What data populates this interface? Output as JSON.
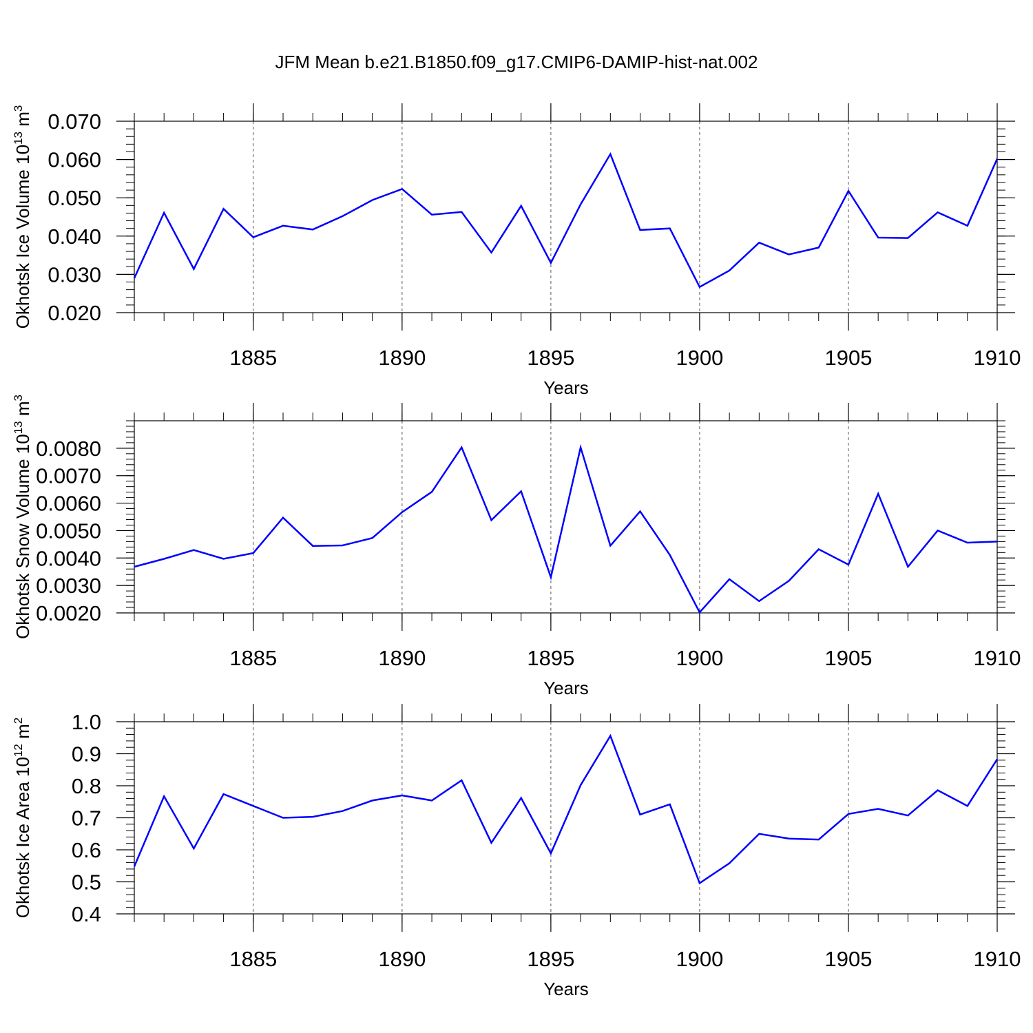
{
  "title": "JFM Mean b.e21.B1850.f09_g17.CMIP6-DAMIP-hist-nat.002",
  "colors": {
    "line": "#0000ff",
    "axis": "#000000",
    "grid": "#555555"
  },
  "chart_data": [
    {
      "type": "line",
      "ylabel_main": "Okhotsk Ice Volume 10",
      "ylabel_sup": "13",
      "ylabel_unit": " m",
      "ylabel_unit_sup": "3",
      "xlabel": "Years",
      "xlim": [
        1881,
        1910
      ],
      "ylim": [
        0.02,
        0.07
      ],
      "xticks": [
        "1885",
        "1890",
        "1895",
        "1900",
        "1905",
        "1910"
      ],
      "yticks": [
        "0.020",
        "0.030",
        "0.040",
        "0.050",
        "0.060",
        "0.070"
      ],
      "x": [
        1881,
        1882,
        1883,
        1884,
        1885,
        1886,
        1887,
        1888,
        1889,
        1890,
        1891,
        1892,
        1893,
        1894,
        1895,
        1896,
        1897,
        1898,
        1899,
        1900,
        1901,
        1902,
        1903,
        1904,
        1905,
        1906,
        1907,
        1908,
        1909,
        1910
      ],
      "values": [
        0.029,
        0.0461,
        0.0314,
        0.0471,
        0.0397,
        0.0427,
        0.0417,
        0.0452,
        0.0494,
        0.0523,
        0.0456,
        0.0463,
        0.0357,
        0.0479,
        0.033,
        0.0483,
        0.0614,
        0.0416,
        0.042,
        0.0267,
        0.031,
        0.0383,
        0.0352,
        0.037,
        0.0518,
        0.0396,
        0.0395,
        0.0462,
        0.0427,
        0.0602
      ]
    },
    {
      "type": "line",
      "ylabel_main": "Okhotsk Snow Volume 10",
      "ylabel_sup": "13",
      "ylabel_unit": " m",
      "ylabel_unit_sup": "3",
      "xlabel": "Years",
      "xlim": [
        1881,
        1910
      ],
      "ylim": [
        0.002,
        0.009
      ],
      "xticks": [
        "1885",
        "1890",
        "1895",
        "1900",
        "1905",
        "1910"
      ],
      "yticks": [
        "0.0020",
        "0.0030",
        "0.0040",
        "0.0050",
        "0.0060",
        "0.0070",
        "0.0080"
      ],
      "x": [
        1881,
        1882,
        1883,
        1884,
        1885,
        1886,
        1887,
        1888,
        1889,
        1890,
        1891,
        1892,
        1893,
        1894,
        1895,
        1896,
        1897,
        1898,
        1899,
        1900,
        1901,
        1902,
        1903,
        1904,
        1905,
        1906,
        1907,
        1908,
        1909,
        1910
      ],
      "values": [
        0.00368,
        0.00397,
        0.00429,
        0.00397,
        0.00418,
        0.00547,
        0.00444,
        0.00446,
        0.00473,
        0.00567,
        0.00641,
        0.00803,
        0.00538,
        0.00643,
        0.0033,
        0.00803,
        0.00445,
        0.0057,
        0.00411,
        0.00202,
        0.00323,
        0.00243,
        0.00317,
        0.00432,
        0.00376,
        0.00634,
        0.00368,
        0.005,
        0.00456,
        0.0046
      ]
    },
    {
      "type": "line",
      "ylabel_main": "Okhotsk Ice Area 10",
      "ylabel_sup": "12",
      "ylabel_unit": " m",
      "ylabel_unit_sup": "2",
      "xlabel": "Years",
      "xlim": [
        1881,
        1910
      ],
      "ylim": [
        0.4,
        1.0
      ],
      "xticks": [
        "1885",
        "1890",
        "1895",
        "1900",
        "1905",
        "1910"
      ],
      "yticks": [
        "0.4",
        "0.5",
        "0.6",
        "0.7",
        "0.8",
        "0.9",
        "1.0"
      ],
      "x": [
        1881,
        1882,
        1883,
        1884,
        1885,
        1886,
        1887,
        1888,
        1889,
        1890,
        1891,
        1892,
        1893,
        1894,
        1895,
        1896,
        1897,
        1898,
        1899,
        1900,
        1901,
        1902,
        1903,
        1904,
        1905,
        1906,
        1907,
        1908,
        1909,
        1910
      ],
      "values": [
        0.548,
        0.767,
        0.604,
        0.774,
        0.737,
        0.7,
        0.703,
        0.721,
        0.754,
        0.77,
        0.754,
        0.817,
        0.622,
        0.762,
        0.589,
        0.802,
        0.956,
        0.71,
        0.742,
        0.496,
        0.558,
        0.65,
        0.635,
        0.632,
        0.712,
        0.728,
        0.707,
        0.786,
        0.737,
        0.883
      ]
    }
  ]
}
